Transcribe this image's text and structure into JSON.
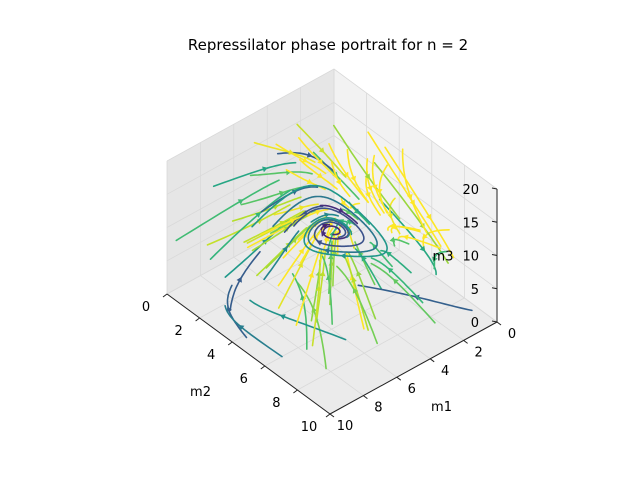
{
  "chart_data": {
    "type": "3d-streamline-phase-portrait",
    "title": "Repressilator phase portrait for n = 2",
    "axes": {
      "x": {
        "label": "m1",
        "range": [
          0,
          10
        ],
        "ticks": [
          0,
          2,
          4,
          6,
          8,
          10
        ]
      },
      "y": {
        "label": "m2",
        "range": [
          0,
          10
        ],
        "ticks": [
          0,
          2,
          4,
          6,
          8,
          10
        ]
      },
      "z": {
        "label": "m3",
        "range": [
          0,
          20
        ],
        "ticks": [
          0,
          5,
          10,
          15,
          20
        ]
      }
    },
    "model": {
      "name": "repressilator",
      "hill_coefficient": 2,
      "equilibrium_approx": [
        1.6,
        1.6,
        1.6
      ]
    },
    "colormap": "viridis (speed)",
    "grid": true,
    "legend": "none"
  }
}
